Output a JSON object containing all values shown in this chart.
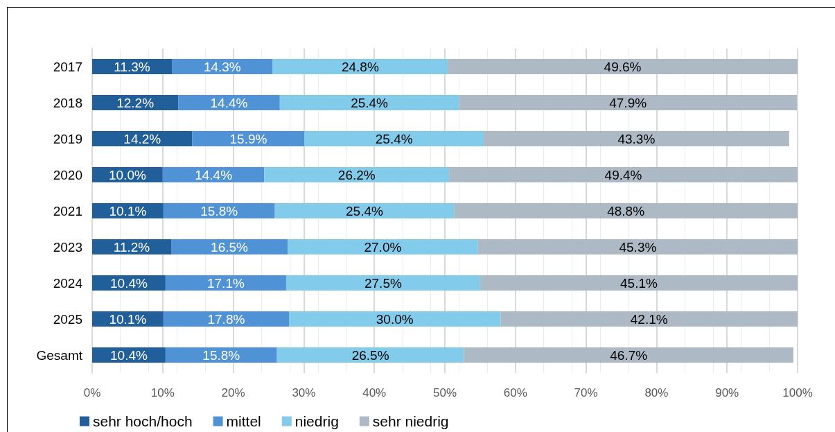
{
  "chart_data": {
    "type": "bar",
    "orientation": "horizontal",
    "stacked": true,
    "categories": [
      "2017",
      "2018",
      "2019",
      "2020",
      "2021",
      "2023",
      "2024",
      "2025",
      "Gesamt"
    ],
    "series": [
      {
        "name": "sehr hoch/hoch",
        "color": "#215f9a",
        "values": [
          11.3,
          12.2,
          14.2,
          10.0,
          10.1,
          11.2,
          10.4,
          10.1,
          10.4
        ],
        "value_labels": [
          "11.3%",
          "12.2%",
          "14.2%",
          "10.0%",
          "10.1%",
          "11.2%",
          "10.4%",
          "10.1%",
          "10.4%"
        ]
      },
      {
        "name": "mittel",
        "color": "#4f93d6",
        "values": [
          14.3,
          14.4,
          15.9,
          14.4,
          15.8,
          16.5,
          17.1,
          17.8,
          15.8
        ],
        "value_labels": [
          "14.3%",
          "14.4%",
          "15.9%",
          "14.4%",
          "15.8%",
          "16.5%",
          "17.1%",
          "17.8%",
          "15.8%"
        ]
      },
      {
        "name": "niedrig",
        "color": "#83cbeb",
        "values": [
          24.8,
          25.4,
          25.4,
          26.2,
          25.4,
          27.0,
          27.5,
          30.0,
          26.5
        ],
        "value_labels": [
          "24.8%",
          "25.4%",
          "25.4%",
          "26.2%",
          "25.4%",
          "27.0%",
          "27.5%",
          "30.0%",
          "26.5%"
        ]
      },
      {
        "name": "sehr niedrig",
        "color": "#adb9c5",
        "values": [
          49.6,
          47.9,
          43.3,
          49.4,
          48.8,
          45.3,
          45.1,
          42.1,
          46.7
        ],
        "value_labels": [
          "49.6%",
          "47.9%",
          "43.3%",
          "49.4%",
          "48.8%",
          "45.3%",
          "45.1%",
          "42.1%",
          "46.7%"
        ]
      }
    ],
    "xlim": [
      0,
      100
    ],
    "xticks": [
      {
        "value": 0,
        "label": "0%"
      },
      {
        "value": 10,
        "label": "10%"
      },
      {
        "value": 20,
        "label": "20%"
      },
      {
        "value": 30,
        "label": "30%"
      },
      {
        "value": 40,
        "label": "40%"
      },
      {
        "value": 50,
        "label": "50%"
      },
      {
        "value": 60,
        "label": "60%"
      },
      {
        "value": 70,
        "label": "70%"
      },
      {
        "value": 80,
        "label": "80%"
      },
      {
        "value": 90,
        "label": "90%"
      },
      {
        "value": 100,
        "label": "100%"
      }
    ],
    "grid": "x",
    "legend": "bottom"
  }
}
